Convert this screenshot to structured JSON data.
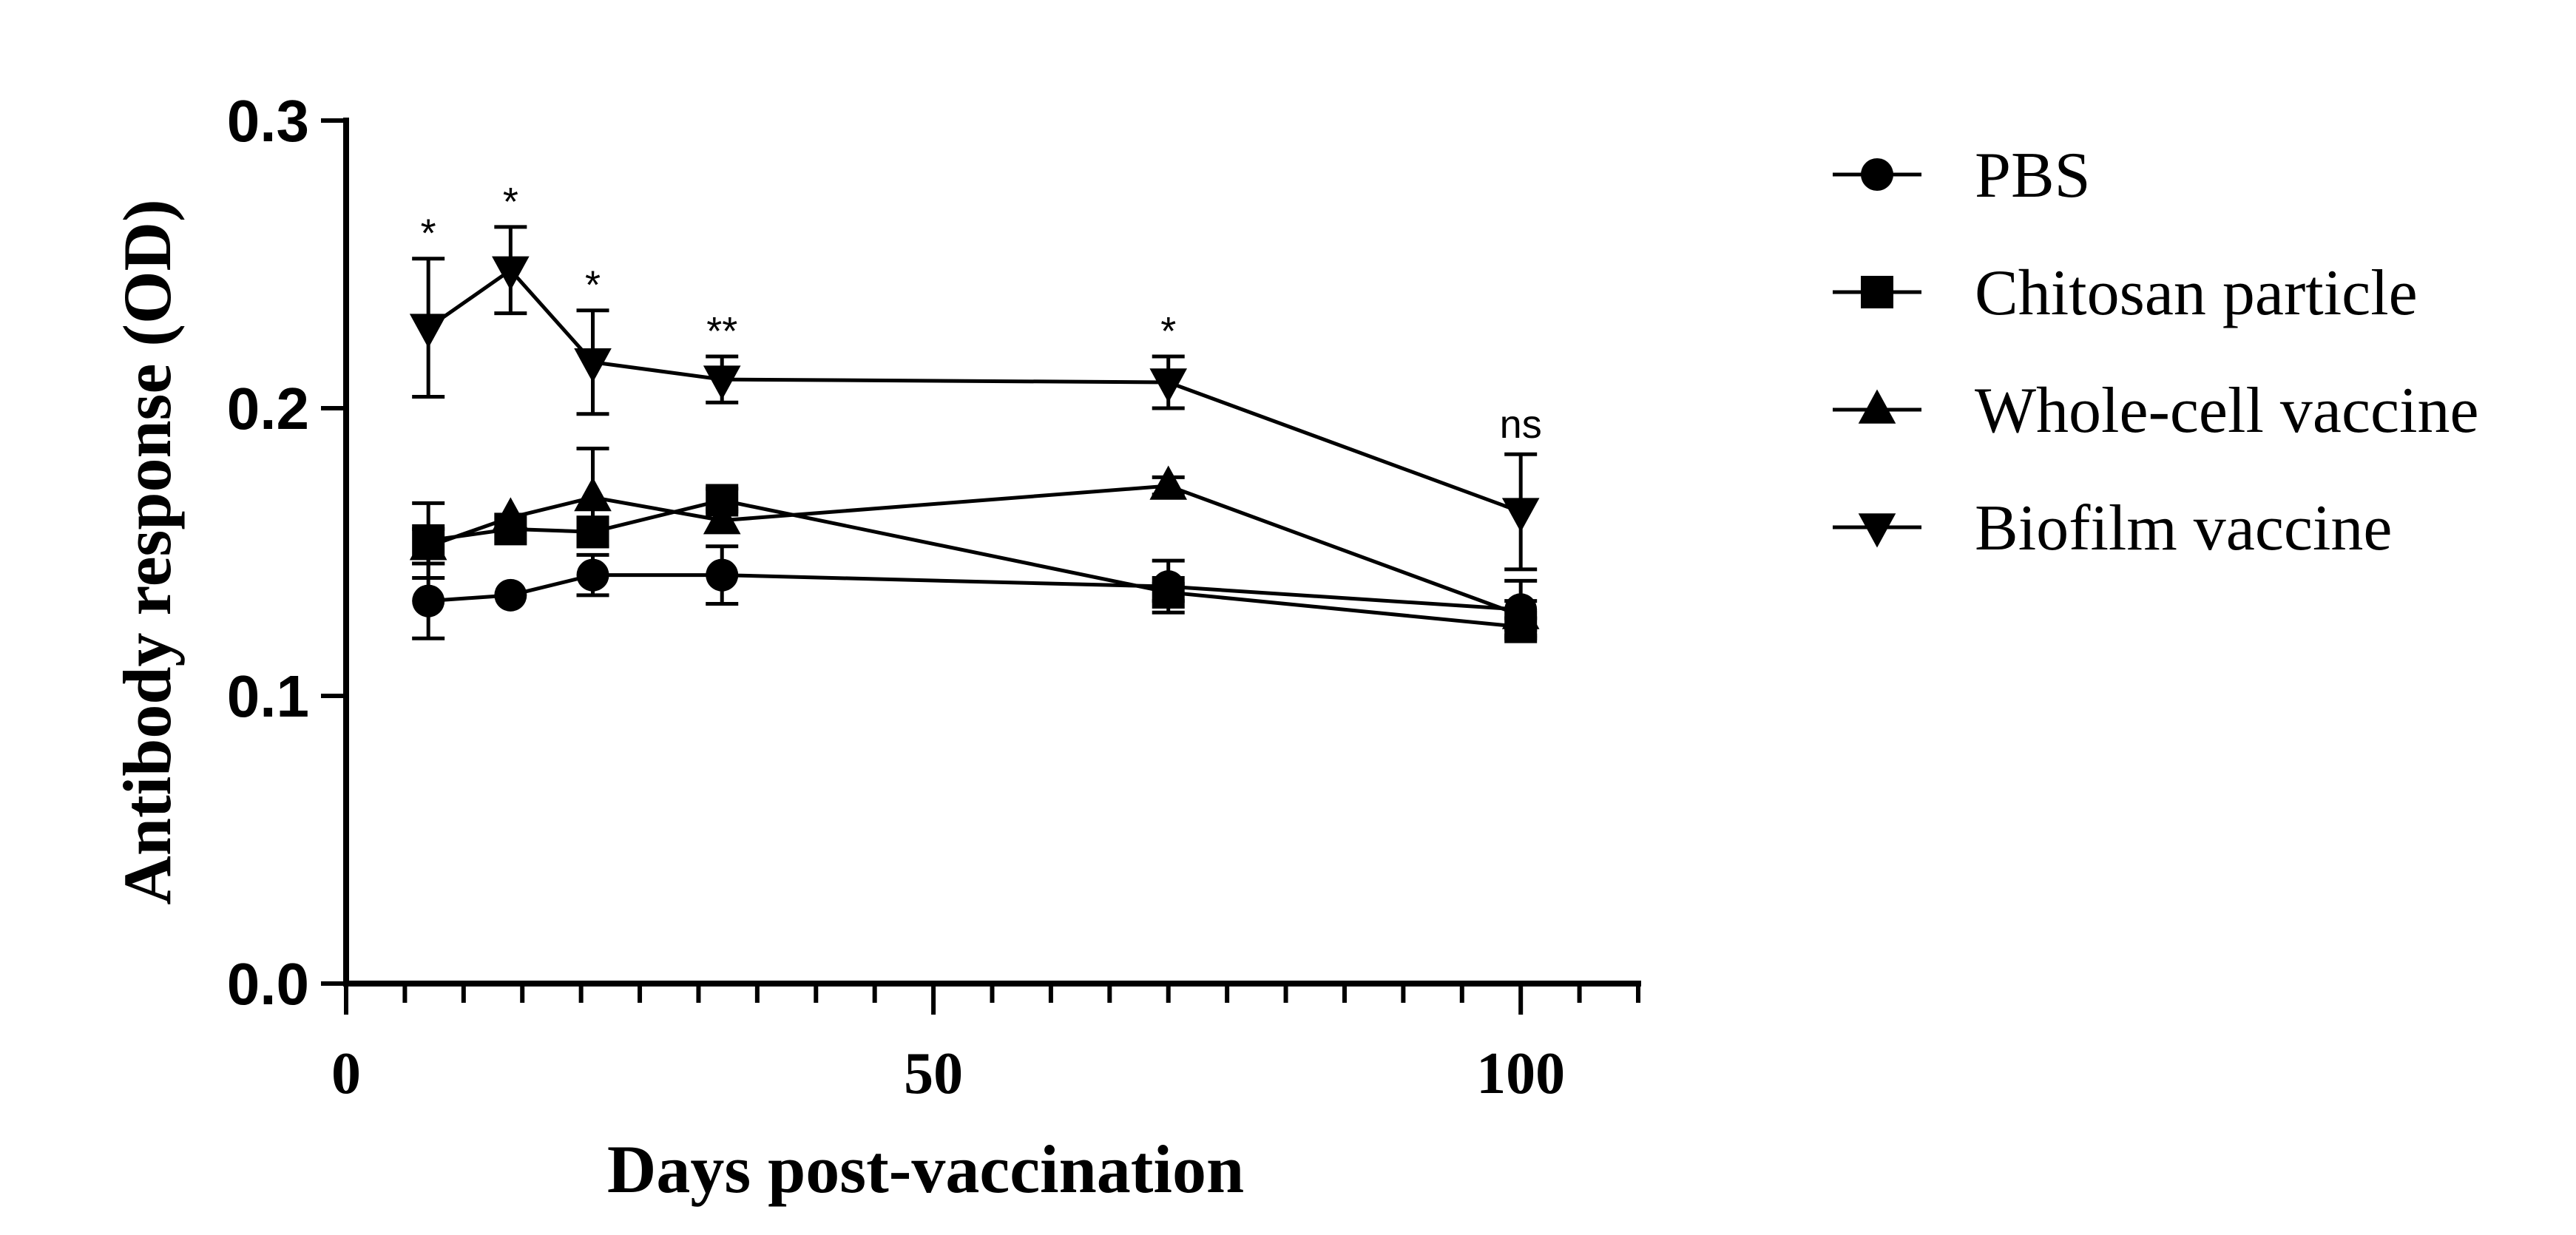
{
  "chart_data": {
    "type": "line",
    "title": "",
    "xlabel": "Days post-vaccination",
    "ylabel": "Antibody response (OD)",
    "xlim": [
      0,
      110
    ],
    "ylim": [
      0.0,
      0.3
    ],
    "x_major_ticks": [
      0,
      50,
      100
    ],
    "x_tick_labels": [
      "0",
      "50",
      "100"
    ],
    "x_minor_step": 5,
    "y_ticks": [
      0.0,
      0.1,
      0.2,
      0.3
    ],
    "y_tick_labels": [
      "0.0",
      "0.1",
      "0.2",
      "0.3"
    ],
    "grid": false,
    "legend_position": "right",
    "series": [
      {
        "name": "PBS",
        "marker": "circle",
        "x": [
          7,
          14,
          21,
          32,
          70,
          100
        ],
        "values": [
          0.133,
          0.135,
          0.142,
          0.142,
          0.138,
          0.13
        ],
        "errors": [
          0.013,
          0,
          0.007,
          0.01,
          0.009,
          0.01
        ]
      },
      {
        "name": "Chitosan particle",
        "marker": "square",
        "x": [
          7,
          14,
          21,
          32,
          70,
          100
        ],
        "values": [
          0.154,
          0.158,
          0.157,
          0.168,
          0.136,
          0.124
        ],
        "errors": [
          0.013,
          0,
          0.005,
          0.004,
          0.003,
          0.003
        ]
      },
      {
        "name": "Whole-cell vaccine",
        "marker": "triangle-up",
        "x": [
          7,
          14,
          21,
          32,
          70,
          100
        ],
        "values": [
          0.152,
          0.162,
          0.169,
          0.161,
          0.173,
          0.128
        ],
        "errors": [
          0.006,
          0,
          0.017,
          0.004,
          0.003,
          0.005
        ]
      },
      {
        "name": "Biofilm  vaccine",
        "marker": "triangle-down",
        "x": [
          7,
          14,
          21,
          32,
          70,
          100
        ],
        "values": [
          0.228,
          0.248,
          0.216,
          0.21,
          0.209,
          0.164
        ],
        "errors": [
          0.024,
          0.015,
          0.018,
          0.008,
          0.009,
          0.02
        ]
      }
    ],
    "annotations": [
      {
        "x": 7,
        "text": "*"
      },
      {
        "x": 14,
        "text": "*"
      },
      {
        "x": 21,
        "text": "*"
      },
      {
        "x": 32,
        "text": "**"
      },
      {
        "x": 70,
        "text": "*"
      },
      {
        "x": 100,
        "text": "ns"
      }
    ]
  }
}
